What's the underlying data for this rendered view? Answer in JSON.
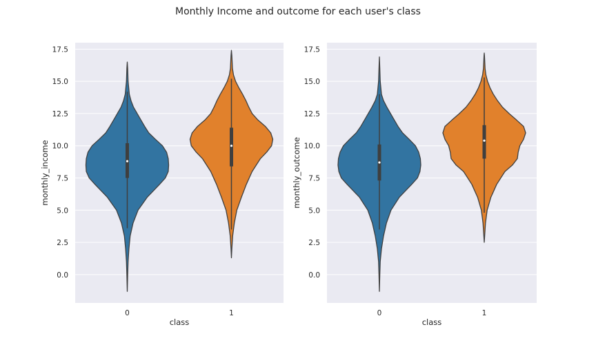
{
  "figure": {
    "title": "Monthly Income and outcome for each user's class"
  },
  "chart_data": [
    {
      "type": "violin",
      "xlabel": "class",
      "ylabel": "monthly_income",
      "categories": [
        "0",
        "1"
      ],
      "ylim": [
        -2.2,
        18.0
      ],
      "yticks": [
        0.0,
        2.5,
        5.0,
        7.5,
        10.0,
        12.5,
        15.0,
        17.5
      ],
      "ytick_labels": [
        "0.0",
        "2.5",
        "5.0",
        "7.5",
        "10.0",
        "12.5",
        "15.0",
        "17.5"
      ],
      "grid": true,
      "violins": [
        {
          "category": "0",
          "color": "#3274a1",
          "min": -1.3,
          "max": 16.5,
          "q1": 7.5,
          "median": 8.8,
          "q3": 10.2,
          "whisker_low": 3.6,
          "whisker_high": 14.2,
          "profile": [
            [
              -1.3,
              0.0
            ],
            [
              0.0,
              0.01
            ],
            [
              1.0,
              0.02
            ],
            [
              2.0,
              0.04
            ],
            [
              3.0,
              0.07
            ],
            [
              4.0,
              0.14
            ],
            [
              5.0,
              0.26
            ],
            [
              6.0,
              0.48
            ],
            [
              7.0,
              0.78
            ],
            [
              7.5,
              0.92
            ],
            [
              8.0,
              0.99
            ],
            [
              8.5,
              1.0
            ],
            [
              9.0,
              0.99
            ],
            [
              9.5,
              0.95
            ],
            [
              10.0,
              0.85
            ],
            [
              10.5,
              0.68
            ],
            [
              11.0,
              0.52
            ],
            [
              11.5,
              0.42
            ],
            [
              12.0,
              0.33
            ],
            [
              12.5,
              0.24
            ],
            [
              13.0,
              0.15
            ],
            [
              13.5,
              0.09
            ],
            [
              14.0,
              0.05
            ],
            [
              15.0,
              0.02
            ],
            [
              16.0,
              0.01
            ],
            [
              16.5,
              0.0
            ]
          ]
        },
        {
          "category": "1",
          "color": "#e1812c",
          "min": 1.3,
          "max": 17.4,
          "q1": 8.4,
          "median": 10.0,
          "q3": 11.4,
          "whisker_low": 3.5,
          "whisker_high": 15.2,
          "profile": [
            [
              1.3,
              0.0
            ],
            [
              2.0,
              0.01
            ],
            [
              3.0,
              0.03
            ],
            [
              4.0,
              0.07
            ],
            [
              5.0,
              0.13
            ],
            [
              6.0,
              0.24
            ],
            [
              7.0,
              0.36
            ],
            [
              8.0,
              0.5
            ],
            [
              9.0,
              0.7
            ],
            [
              9.5,
              0.85
            ],
            [
              10.0,
              0.97
            ],
            [
              10.5,
              1.0
            ],
            [
              11.0,
              0.95
            ],
            [
              11.5,
              0.82
            ],
            [
              12.0,
              0.64
            ],
            [
              12.5,
              0.5
            ],
            [
              13.0,
              0.42
            ],
            [
              13.5,
              0.35
            ],
            [
              14.0,
              0.27
            ],
            [
              14.5,
              0.18
            ],
            [
              15.0,
              0.1
            ],
            [
              15.5,
              0.05
            ],
            [
              16.0,
              0.025
            ],
            [
              17.0,
              0.01
            ],
            [
              17.4,
              0.0
            ]
          ]
        }
      ]
    },
    {
      "type": "violin",
      "xlabel": "class",
      "ylabel": "monthly_outcome",
      "categories": [
        "0",
        "1"
      ],
      "ylim": [
        -2.2,
        18.0
      ],
      "yticks": [
        0.0,
        2.5,
        5.0,
        7.5,
        10.0,
        12.5,
        15.0,
        17.5
      ],
      "ytick_labels": [
        "0.0",
        "2.5",
        "5.0",
        "7.5",
        "10.0",
        "12.5",
        "15.0",
        "17.5"
      ],
      "grid": true,
      "violins": [
        {
          "category": "0",
          "color": "#3274a1",
          "min": -1.3,
          "max": 16.9,
          "q1": 7.3,
          "median": 8.7,
          "q3": 10.1,
          "whisker_low": 3.5,
          "whisker_high": 14.0,
          "profile": [
            [
              -1.3,
              0.0
            ],
            [
              0.0,
              0.01
            ],
            [
              1.0,
              0.02
            ],
            [
              2.0,
              0.05
            ],
            [
              3.0,
              0.1
            ],
            [
              4.0,
              0.17
            ],
            [
              5.0,
              0.28
            ],
            [
              6.0,
              0.48
            ],
            [
              7.0,
              0.78
            ],
            [
              7.5,
              0.92
            ],
            [
              8.0,
              0.98
            ],
            [
              8.5,
              1.0
            ],
            [
              9.0,
              0.99
            ],
            [
              9.5,
              0.95
            ],
            [
              10.0,
              0.87
            ],
            [
              10.5,
              0.72
            ],
            [
              11.0,
              0.56
            ],
            [
              11.5,
              0.45
            ],
            [
              12.0,
              0.36
            ],
            [
              12.5,
              0.27
            ],
            [
              13.0,
              0.18
            ],
            [
              13.5,
              0.1
            ],
            [
              14.0,
              0.05
            ],
            [
              15.0,
              0.02
            ],
            [
              16.0,
              0.01
            ],
            [
              16.9,
              0.0
            ]
          ]
        },
        {
          "category": "1",
          "color": "#e1812c",
          "min": 2.5,
          "max": 17.2,
          "q1": 9.0,
          "median": 10.4,
          "q3": 11.6,
          "whisker_low": 4.8,
          "whisker_high": 15.3,
          "profile": [
            [
              2.5,
              0.0
            ],
            [
              3.0,
              0.01
            ],
            [
              4.0,
              0.03
            ],
            [
              5.0,
              0.07
            ],
            [
              6.0,
              0.16
            ],
            [
              7.0,
              0.3
            ],
            [
              8.0,
              0.5
            ],
            [
              8.5,
              0.68
            ],
            [
              9.0,
              0.8
            ],
            [
              9.5,
              0.82
            ],
            [
              10.0,
              0.86
            ],
            [
              10.5,
              0.95
            ],
            [
              11.0,
              1.0
            ],
            [
              11.5,
              0.95
            ],
            [
              12.0,
              0.78
            ],
            [
              12.5,
              0.6
            ],
            [
              13.0,
              0.44
            ],
            [
              13.5,
              0.32
            ],
            [
              14.0,
              0.22
            ],
            [
              14.5,
              0.14
            ],
            [
              15.0,
              0.08
            ],
            [
              15.5,
              0.04
            ],
            [
              16.0,
              0.02
            ],
            [
              17.0,
              0.005
            ],
            [
              17.2,
              0.0
            ]
          ]
        }
      ]
    }
  ]
}
